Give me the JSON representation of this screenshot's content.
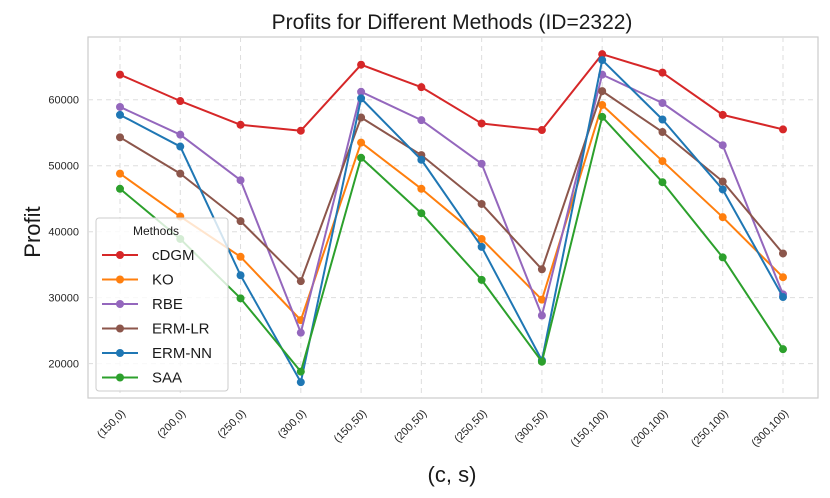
{
  "chart_data": {
    "type": "line",
    "title": "Profits for Different Methods (ID=2322)",
    "xlabel": "(c, s)",
    "ylabel": "Profit",
    "categories": [
      "(150,0)",
      "(200,0)",
      "(250,0)",
      "(300,0)",
      "(150,50)",
      "(200,50)",
      "(250,50)",
      "(300,50)",
      "(150,100)",
      "(200,100)",
      "(250,100)",
      "(300,100)"
    ],
    "yticks": [
      20000,
      30000,
      40000,
      50000,
      60000
    ],
    "ylim": [
      14800,
      69500
    ],
    "grid": true,
    "legend": {
      "title": "Methods",
      "placement": "lower-left"
    },
    "series": [
      {
        "name": "cDGM",
        "color": "#d62728",
        "values": [
          63800,
          59800,
          56200,
          55300,
          65300,
          61900,
          56400,
          55400,
          66900,
          64100,
          57700,
          55500
        ]
      },
      {
        "name": "KO",
        "color": "#ff7f0e",
        "values": [
          48800,
          42300,
          36200,
          26600,
          53500,
          46500,
          38900,
          29700,
          59200,
          50700,
          42200,
          33100
        ]
      },
      {
        "name": "RBE",
        "color": "#9467bd",
        "values": [
          58900,
          54700,
          47800,
          24700,
          61200,
          56900,
          50300,
          27300,
          63800,
          59500,
          53100,
          30500
        ]
      },
      {
        "name": "ERM-LR",
        "color": "#8c564b",
        "values": [
          54300,
          48800,
          41600,
          32500,
          57300,
          51600,
          44200,
          34300,
          61300,
          55100,
          47600,
          36700
        ]
      },
      {
        "name": "ERM-NN",
        "color": "#1f77b4",
        "values": [
          57700,
          52900,
          33400,
          17200,
          60200,
          50900,
          37700,
          20500,
          66000,
          57000,
          46400,
          30100
        ]
      },
      {
        "name": "SAA",
        "color": "#2ca02c",
        "values": [
          46500,
          38900,
          29900,
          18800,
          51200,
          42800,
          32700,
          20300,
          57400,
          47500,
          36100,
          22200
        ]
      }
    ]
  }
}
